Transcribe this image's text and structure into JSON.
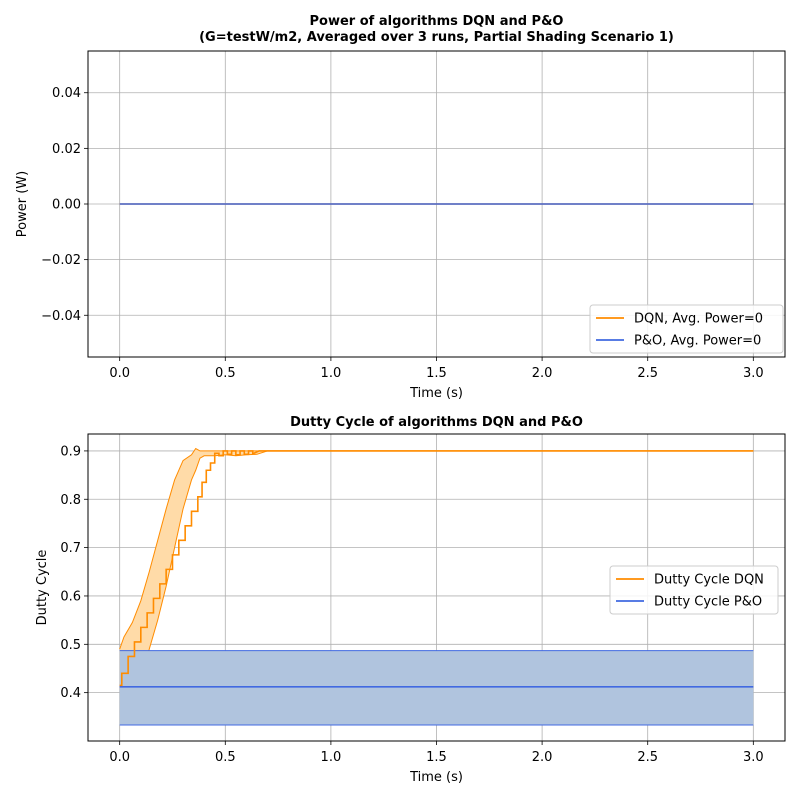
{
  "colors": {
    "dqn": "#ff8c00",
    "dqn_band": "#ffdba8",
    "po": "#4169e1",
    "po_band": "#b0c4de",
    "grid": "#b0b0b0"
  },
  "chart_data": [
    {
      "type": "line",
      "title": "Power of algorithms DQN and P&O",
      "subtitle": "(G=testW/m2, Averaged over 3 runs, Partial Shading Scenario 1)",
      "xlabel": "Time (s)",
      "ylabel": "Power (W)",
      "xlim": [
        -0.15,
        3.15
      ],
      "ylim": [
        -0.055,
        0.055
      ],
      "xticks": [
        0.0,
        0.5,
        1.0,
        1.5,
        2.0,
        2.5,
        3.0
      ],
      "xtick_labels": [
        "0.0",
        "0.5",
        "1.0",
        "1.5",
        "2.0",
        "2.5",
        "3.0"
      ],
      "yticks": [
        -0.04,
        -0.02,
        0.0,
        0.02,
        0.04
      ],
      "ytick_labels": [
        "−0.04",
        "−0.02",
        "0.00",
        "0.02",
        "0.04"
      ],
      "grid": true,
      "legend_position": "lower-right",
      "series": [
        {
          "name": "DQN, Avg. Power=0",
          "color": "#ff8c00",
          "x": [
            0.0,
            3.0
          ],
          "y": [
            0,
            0
          ]
        },
        {
          "name": "P&O, Avg. Power=0",
          "color": "#4169e1",
          "x": [
            0.0,
            3.0
          ],
          "y": [
            0,
            0
          ]
        }
      ]
    },
    {
      "type": "line",
      "title": "Dutty Cycle of algorithms DQN and P&O",
      "xlabel": "Time (s)",
      "ylabel": "Dutty Cycle",
      "xlim": [
        -0.15,
        3.15
      ],
      "ylim": [
        0.3,
        0.935
      ],
      "xticks": [
        0.0,
        0.5,
        1.0,
        1.5,
        2.0,
        2.5,
        3.0
      ],
      "xtick_labels": [
        "0.0",
        "0.5",
        "1.0",
        "1.5",
        "2.0",
        "2.5",
        "3.0"
      ],
      "yticks": [
        0.4,
        0.5,
        0.6,
        0.7,
        0.8,
        0.9
      ],
      "ytick_labels": [
        "0.4",
        "0.5",
        "0.6",
        "0.7",
        "0.8",
        "0.9"
      ],
      "grid": true,
      "legend_position": "center-right",
      "series": [
        {
          "name": "Dutty Cycle DQN",
          "color": "#ff8c00",
          "x": [
            0.0,
            0.01,
            0.01,
            0.04,
            0.04,
            0.07,
            0.07,
            0.1,
            0.1,
            0.13,
            0.13,
            0.16,
            0.16,
            0.19,
            0.19,
            0.22,
            0.22,
            0.25,
            0.25,
            0.28,
            0.28,
            0.31,
            0.31,
            0.34,
            0.34,
            0.37,
            0.37,
            0.39,
            0.39,
            0.41,
            0.41,
            0.43,
            0.43,
            0.45,
            0.45,
            0.47,
            0.47,
            0.49,
            0.49,
            0.51,
            0.51,
            0.53,
            0.53,
            0.55,
            0.55,
            0.57,
            0.57,
            0.59,
            0.59,
            0.61,
            0.61,
            0.63,
            0.63,
            0.66,
            3.0
          ],
          "y": [
            0.415,
            0.415,
            0.44,
            0.44,
            0.475,
            0.475,
            0.505,
            0.505,
            0.535,
            0.535,
            0.565,
            0.565,
            0.595,
            0.595,
            0.625,
            0.625,
            0.655,
            0.655,
            0.685,
            0.685,
            0.715,
            0.715,
            0.745,
            0.745,
            0.775,
            0.775,
            0.805,
            0.805,
            0.835,
            0.835,
            0.86,
            0.86,
            0.875,
            0.875,
            0.895,
            0.895,
            0.89,
            0.89,
            0.9,
            0.9,
            0.893,
            0.893,
            0.9,
            0.9,
            0.892,
            0.892,
            0.9,
            0.9,
            0.893,
            0.893,
            0.9,
            0.9,
            0.894,
            0.9,
            0.9
          ]
        },
        {
          "name": "Dutty Cycle P&O",
          "color": "#4169e1",
          "x": [
            0.0,
            3.0
          ],
          "y": [
            0.412,
            0.412
          ]
        }
      ],
      "bands": [
        {
          "series": "Dutty Cycle DQN",
          "x": [
            0.0,
            0.02,
            0.06,
            0.1,
            0.14,
            0.18,
            0.22,
            0.26,
            0.3,
            0.34,
            0.36,
            0.38,
            0.4,
            0.45,
            0.5,
            0.55,
            0.6,
            0.65,
            0.7,
            3.0
          ],
          "upper": [
            0.49,
            0.515,
            0.545,
            0.59,
            0.65,
            0.715,
            0.78,
            0.84,
            0.88,
            0.892,
            0.905,
            0.9,
            0.9,
            0.9,
            0.9,
            0.9,
            0.9,
            0.9,
            0.9,
            0.9
          ],
          "lower": [
            0.41,
            0.41,
            0.41,
            0.42,
            0.49,
            0.55,
            0.62,
            0.7,
            0.78,
            0.84,
            0.86,
            0.885,
            0.89,
            0.89,
            0.892,
            0.89,
            0.892,
            0.893,
            0.9,
            0.9
          ]
        },
        {
          "series": "Dutty Cycle P&O",
          "x": [
            0.0,
            3.0
          ],
          "upper": [
            0.487,
            0.487
          ],
          "lower": [
            0.333,
            0.333
          ]
        }
      ]
    }
  ]
}
